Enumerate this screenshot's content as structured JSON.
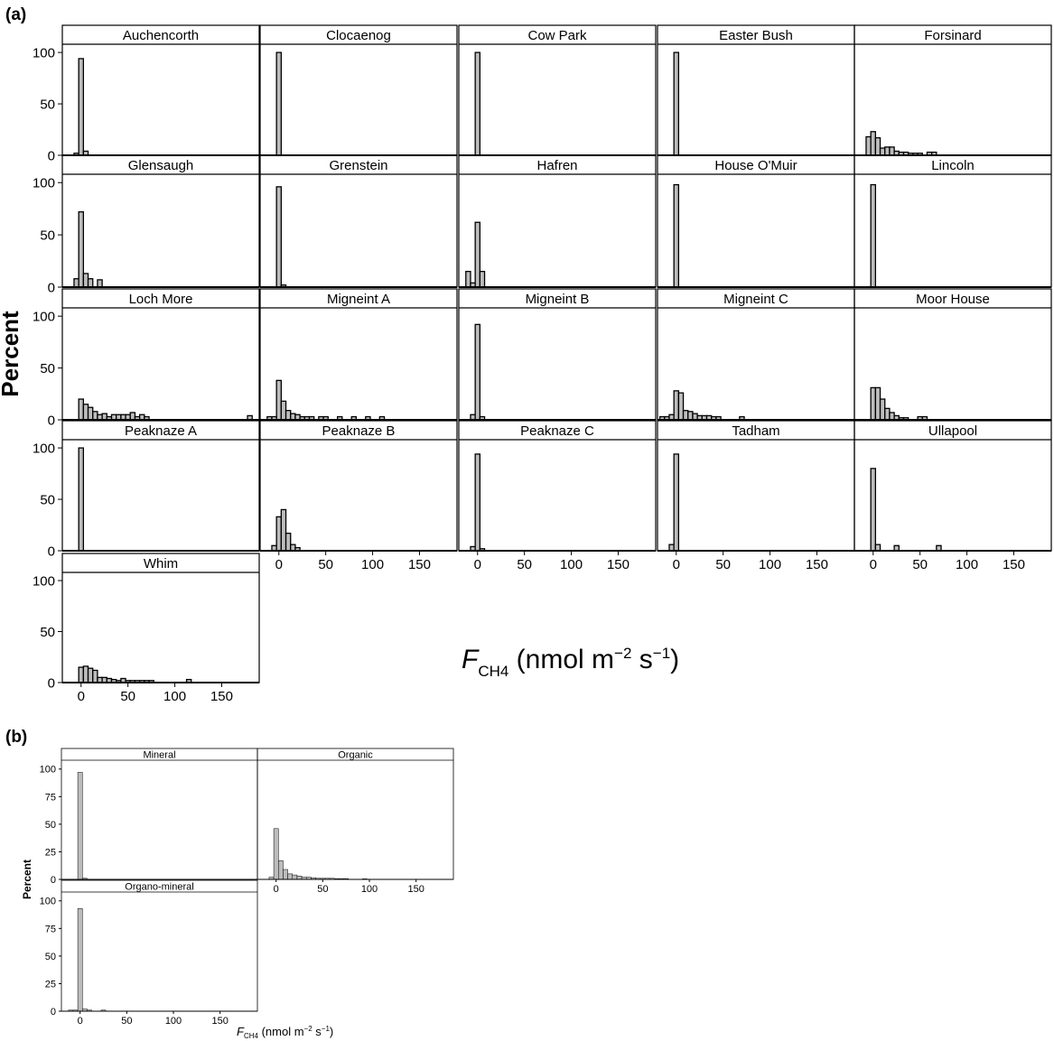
{
  "figure": {
    "panel_a_label": "(a)",
    "panel_b_label": "(b)",
    "a_ylabel": "Percent",
    "b_ylabel": "Percent",
    "xlabel_main": "F",
    "xlabel_sub": "CH4",
    "xlabel_unit_a": " (nmol m",
    "xlabel_exp1": "−2",
    "xlabel_unit_b": " s",
    "xlabel_exp2": "−1",
    "xlabel_close": ")"
  },
  "colors": {
    "bar_fill": "#bcbcbc",
    "stroke": "#000000"
  },
  "chart_data": [
    {
      "type": "bar",
      "panel": "(a)",
      "description_kind": "faceted histogram",
      "xlim": [
        -20,
        190
      ],
      "ylim": [
        0,
        108
      ],
      "bin_width": 5,
      "x_ticks": [
        0,
        50,
        100,
        150
      ],
      "y_ticks": [
        0,
        50,
        100
      ],
      "facets": [
        {
          "title": "Auchencorth",
          "bins": [
            [
              -5,
              2
            ],
            [
              0,
              94
            ],
            [
              5,
              4
            ]
          ]
        },
        {
          "title": "Clocaenog",
          "bins": [
            [
              0,
              100
            ]
          ]
        },
        {
          "title": "Cow Park",
          "bins": [
            [
              0,
              100
            ]
          ]
        },
        {
          "title": "Easter Bush",
          "bins": [
            [
              0,
              100
            ]
          ]
        },
        {
          "title": "Forsinard",
          "bins": [
            [
              -5,
              18
            ],
            [
              0,
              23
            ],
            [
              5,
              17
            ],
            [
              10,
              7
            ],
            [
              15,
              8
            ],
            [
              20,
              8
            ],
            [
              25,
              4
            ],
            [
              30,
              3
            ],
            [
              35,
              3
            ],
            [
              40,
              2
            ],
            [
              45,
              2
            ],
            [
              50,
              2
            ],
            [
              60,
              3
            ],
            [
              65,
              3
            ]
          ]
        },
        {
          "title": "Glensaugh",
          "bins": [
            [
              -5,
              8
            ],
            [
              0,
              72
            ],
            [
              5,
              13
            ],
            [
              10,
              8
            ],
            [
              20,
              7
            ]
          ]
        },
        {
          "title": "Grenstein",
          "bins": [
            [
              0,
              96
            ],
            [
              5,
              2
            ]
          ]
        },
        {
          "title": "Hafren",
          "bins": [
            [
              -10,
              15
            ],
            [
              -5,
              4
            ],
            [
              0,
              62
            ],
            [
              5,
              15
            ]
          ]
        },
        {
          "title": "House O'Muir",
          "bins": [
            [
              0,
              98
            ]
          ]
        },
        {
          "title": "Lincoln",
          "bins": [
            [
              0,
              98
            ]
          ]
        },
        {
          "title": "Loch More",
          "bins": [
            [
              0,
              20
            ],
            [
              5,
              15
            ],
            [
              10,
              12
            ],
            [
              15,
              8
            ],
            [
              20,
              5
            ],
            [
              25,
              6
            ],
            [
              30,
              3
            ],
            [
              35,
              5
            ],
            [
              40,
              5
            ],
            [
              45,
              5
            ],
            [
              50,
              5
            ],
            [
              55,
              7
            ],
            [
              60,
              3
            ],
            [
              65,
              5
            ],
            [
              70,
              3
            ],
            [
              180,
              4
            ]
          ]
        },
        {
          "title": "Migneint A",
          "bins": [
            [
              -10,
              3
            ],
            [
              -5,
              3
            ],
            [
              0,
              38
            ],
            [
              5,
              18
            ],
            [
              10,
              9
            ],
            [
              15,
              6
            ],
            [
              20,
              5
            ],
            [
              25,
              3
            ],
            [
              30,
              3
            ],
            [
              35,
              3
            ],
            [
              45,
              3
            ],
            [
              50,
              3
            ],
            [
              65,
              3
            ],
            [
              80,
              3
            ],
            [
              95,
              3
            ],
            [
              110,
              3
            ]
          ]
        },
        {
          "title": "Migneint B",
          "bins": [
            [
              -5,
              5
            ],
            [
              0,
              92
            ],
            [
              5,
              3
            ]
          ]
        },
        {
          "title": "Migneint C",
          "bins": [
            [
              -15,
              3
            ],
            [
              -10,
              3
            ],
            [
              -5,
              5
            ],
            [
              0,
              28
            ],
            [
              5,
              26
            ],
            [
              10,
              9
            ],
            [
              15,
              8
            ],
            [
              20,
              6
            ],
            [
              25,
              4
            ],
            [
              30,
              4
            ],
            [
              35,
              4
            ],
            [
              40,
              3
            ],
            [
              45,
              3
            ],
            [
              70,
              3
            ]
          ]
        },
        {
          "title": "Moor House",
          "bins": [
            [
              0,
              31
            ],
            [
              5,
              31
            ],
            [
              10,
              20
            ],
            [
              15,
              11
            ],
            [
              20,
              7
            ],
            [
              25,
              4
            ],
            [
              30,
              2
            ],
            [
              35,
              2
            ],
            [
              50,
              3
            ],
            [
              55,
              3
            ]
          ]
        },
        {
          "title": "Peaknaze A",
          "bins": [
            [
              0,
              100
            ]
          ]
        },
        {
          "title": "Peaknaze B",
          "bins": [
            [
              -5,
              5
            ],
            [
              0,
              33
            ],
            [
              5,
              40
            ],
            [
              10,
              17
            ],
            [
              15,
              6
            ],
            [
              20,
              3
            ]
          ]
        },
        {
          "title": "Peaknaze C",
          "bins": [
            [
              -5,
              4
            ],
            [
              0,
              94
            ],
            [
              5,
              2
            ]
          ]
        },
        {
          "title": "Tadham",
          "bins": [
            [
              -5,
              6
            ],
            [
              0,
              94
            ]
          ]
        },
        {
          "title": "Ullapool",
          "bins": [
            [
              0,
              80
            ],
            [
              5,
              6
            ],
            [
              25,
              5
            ],
            [
              70,
              5
            ]
          ]
        },
        {
          "title": "Whim",
          "bins": [
            [
              0,
              15
            ],
            [
              5,
              16
            ],
            [
              10,
              14
            ],
            [
              15,
              12
            ],
            [
              20,
              5
            ],
            [
              25,
              5
            ],
            [
              30,
              4
            ],
            [
              35,
              3
            ],
            [
              40,
              2
            ],
            [
              45,
              4
            ],
            [
              50,
              2
            ],
            [
              55,
              2
            ],
            [
              60,
              2
            ],
            [
              65,
              2
            ],
            [
              70,
              2
            ],
            [
              75,
              2
            ],
            [
              115,
              3
            ]
          ]
        }
      ]
    },
    {
      "type": "bar",
      "panel": "(b)",
      "description_kind": "faceted histogram",
      "xlim": [
        -20,
        190
      ],
      "ylim": [
        0,
        108
      ],
      "bin_width": 5,
      "x_ticks": [
        0,
        50,
        100,
        150
      ],
      "y_ticks": [
        0,
        25,
        50,
        75,
        100
      ],
      "facets": [
        {
          "title": "Mineral",
          "bins": [
            [
              0,
              97
            ],
            [
              5,
              1
            ]
          ]
        },
        {
          "title": "Organic",
          "bins": [
            [
              -5,
              2
            ],
            [
              0,
              46
            ],
            [
              5,
              17
            ],
            [
              10,
              9
            ],
            [
              15,
              5
            ],
            [
              20,
              4
            ],
            [
              25,
              3
            ],
            [
              30,
              2
            ],
            [
              35,
              2
            ],
            [
              40,
              1.5
            ],
            [
              45,
              1
            ],
            [
              50,
              1
            ],
            [
              55,
              1
            ],
            [
              60,
              1
            ],
            [
              65,
              0.7
            ],
            [
              70,
              0.7
            ],
            [
              75,
              0.7
            ],
            [
              95,
              0.5
            ]
          ]
        },
        {
          "title": "Organo-mineral",
          "bins": [
            [
              -10,
              1
            ],
            [
              -5,
              1
            ],
            [
              0,
              93
            ],
            [
              5,
              2
            ],
            [
              10,
              1
            ],
            [
              25,
              1
            ]
          ]
        }
      ]
    }
  ]
}
